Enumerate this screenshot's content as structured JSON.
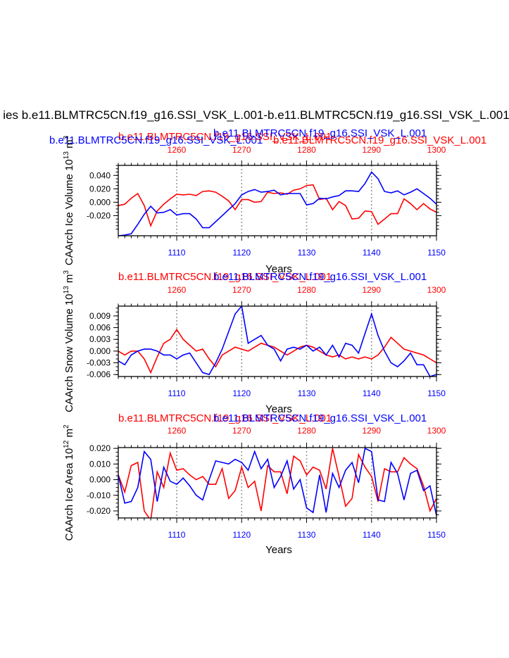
{
  "figure": {
    "main_title": "ies b.e11.BLMTRC5CN.f19_g16.SSI_VSK_L.001-b.e11.BLMTRC5CN.f19_g16.SSI_VSK_L.001"
  },
  "colors": {
    "series_a": "#ff0000",
    "series_b": "#0000ff",
    "reference_lines": "#999999"
  },
  "chart_data": [
    {
      "type": "line",
      "title_left": "b.e11.BLMTRC5CN.f19_g16.SSI_VSK_L.001",
      "title_right": "b.e11.BLMTRC5CN.f19_g16.SSI_VSK_L.001",
      "extra_title_left": "b.e11.BLMTRC5CN.f19_g16.SSI_VSK_L.001",
      "extra_title_right": "b.e11.BLMTRC5CN.f19_g16.SSI_VSK_L.001",
      "ylabel": "CAArch Ice Volume 10",
      "ylabel_exp": "13",
      "ylabel_unit": " m",
      "ylabel_unit_exp": "3",
      "xlabel": "Years",
      "xlim_bottom": [
        1101,
        1150
      ],
      "xlim_top": [
        1251,
        1300
      ],
      "ylim": [
        -0.05,
        0.055
      ],
      "yticks": [
        -0.02,
        0.0,
        0.02,
        0.04
      ],
      "ytick_labels": [
        "-0.020",
        "0.000",
        "0.020",
        "0.040"
      ],
      "xticks_bottom": [
        "1110",
        "1120",
        "1130",
        "1140",
        "1150"
      ],
      "xticks_top": [
        "1260",
        "1270",
        "1280",
        "1290",
        "1300"
      ],
      "series": [
        {
          "color": "#ff0000",
          "x_axis": "top",
          "x": [
            1251,
            1252,
            1253,
            1254,
            1255,
            1256,
            1257,
            1258,
            1259,
            1260,
            1261,
            1262,
            1263,
            1264,
            1265,
            1266,
            1267,
            1268,
            1269,
            1270,
            1271,
            1272,
            1273,
            1274,
            1275,
            1276,
            1277,
            1278,
            1279,
            1280,
            1281,
            1282,
            1283,
            1284,
            1285,
            1286,
            1287,
            1288,
            1289,
            1290,
            1291,
            1292,
            1293,
            1294,
            1295,
            1296,
            1297,
            1298,
            1299,
            1300
          ],
          "values": [
            -0.005,
            -0.003,
            0.006,
            0.013,
            -0.005,
            -0.035,
            -0.013,
            -0.003,
            0.005,
            0.012,
            0.011,
            0.012,
            0.01,
            0.016,
            0.017,
            0.015,
            0.009,
            0.002,
            -0.011,
            0.004,
            0.004,
            0.0,
            0.001,
            0.015,
            0.013,
            0.014,
            0.012,
            0.018,
            0.02,
            0.025,
            0.026,
            0.004,
            0.006,
            -0.011,
            0.001,
            -0.005,
            -0.025,
            -0.024,
            -0.013,
            -0.014,
            -0.033,
            -0.025,
            -0.017,
            -0.017,
            0.005,
            -0.002,
            -0.011,
            -0.002,
            -0.01,
            -0.015
          ]
        },
        {
          "color": "#0000ff",
          "x_axis": "bottom",
          "x": [
            1101,
            1102,
            1103,
            1104,
            1105,
            1106,
            1107,
            1108,
            1109,
            1110,
            1111,
            1112,
            1113,
            1114,
            1115,
            1116,
            1117,
            1118,
            1119,
            1120,
            1121,
            1122,
            1123,
            1124,
            1125,
            1126,
            1127,
            1128,
            1129,
            1130,
            1131,
            1132,
            1133,
            1134,
            1135,
            1136,
            1137,
            1138,
            1139,
            1140,
            1141,
            1142,
            1143,
            1144,
            1145,
            1146,
            1147,
            1148,
            1149,
            1150
          ],
          "values": [
            -0.05,
            -0.049,
            -0.047,
            -0.033,
            -0.018,
            -0.006,
            -0.016,
            -0.015,
            -0.011,
            -0.019,
            -0.017,
            -0.017,
            -0.025,
            -0.038,
            -0.038,
            -0.029,
            -0.02,
            -0.011,
            -0.002,
            0.011,
            0.016,
            0.019,
            0.015,
            0.016,
            0.018,
            0.011,
            0.013,
            0.013,
            0.013,
            -0.004,
            -0.002,
            0.006,
            0.005,
            0.008,
            0.01,
            0.017,
            0.017,
            0.016,
            0.028,
            0.045,
            0.035,
            0.016,
            0.014,
            0.017,
            0.011,
            0.015,
            0.02,
            0.013,
            0.006,
            -0.003
          ]
        }
      ]
    },
    {
      "type": "line",
      "title_left": "b.e11.BLMTRC5CN.f19_g16.SSI_VSK_L.001",
      "title_right": "b.e11.BLMTRC5CN.f19_g16.SSI_VSK_L.001",
      "ylabel": "CAArch Snow Volume 10",
      "ylabel_exp": "13",
      "ylabel_unit": " m",
      "ylabel_unit_exp": "3",
      "xlabel": "Years",
      "xlim_bottom": [
        1101,
        1150
      ],
      "xlim_top": [
        1251,
        1300
      ],
      "ylim": [
        -0.0065,
        0.0115
      ],
      "yticks": [
        -0.006,
        -0.003,
        0.0,
        0.003,
        0.006,
        0.009
      ],
      "ytick_labels": [
        "-0.006",
        "-0.003",
        "0.000",
        "0.003",
        "0.006",
        "0.009"
      ],
      "xticks_bottom": [
        "1110",
        "1120",
        "1130",
        "1140",
        "1150"
      ],
      "xticks_top": [
        "1260",
        "1270",
        "1280",
        "1290",
        "1300"
      ],
      "series": [
        {
          "color": "#ff0000",
          "x_axis": "top",
          "x": [
            1251,
            1252,
            1253,
            1254,
            1255,
            1256,
            1257,
            1258,
            1259,
            1260,
            1261,
            1262,
            1263,
            1264,
            1265,
            1266,
            1267,
            1268,
            1269,
            1270,
            1271,
            1272,
            1273,
            1274,
            1275,
            1276,
            1277,
            1278,
            1279,
            1280,
            1281,
            1282,
            1283,
            1284,
            1285,
            1286,
            1287,
            1288,
            1289,
            1290,
            1291,
            1292,
            1293,
            1294,
            1295,
            1296,
            1297,
            1298,
            1299,
            1300
          ],
          "values": [
            0.0,
            -0.001,
            0.0,
            0.0,
            -0.002,
            -0.0055,
            -0.0015,
            0.002,
            0.003,
            0.0055,
            0.003,
            0.0015,
            0.0,
            0.0005,
            -0.002,
            -0.004,
            -0.001,
            0.0,
            0.001,
            0.0005,
            0.0,
            0.001,
            0.002,
            0.0015,
            0.001,
            0.0,
            -0.001,
            0.0,
            0.001,
            0.0015,
            0.001,
            0.0,
            -0.001,
            -0.0015,
            -0.001,
            -0.002,
            -0.0015,
            -0.002,
            -0.0015,
            -0.002,
            -0.001,
            0.001,
            0.0035,
            0.002,
            0.0005,
            0.0,
            -0.0005,
            -0.001,
            -0.002,
            -0.003
          ]
        },
        {
          "color": "#0000ff",
          "x_axis": "bottom",
          "x": [
            1101,
            1102,
            1103,
            1104,
            1105,
            1106,
            1107,
            1108,
            1109,
            1110,
            1111,
            1112,
            1113,
            1114,
            1115,
            1116,
            1117,
            1118,
            1119,
            1120,
            1121,
            1122,
            1123,
            1124,
            1125,
            1126,
            1127,
            1128,
            1129,
            1130,
            1131,
            1132,
            1133,
            1134,
            1135,
            1136,
            1137,
            1138,
            1139,
            1140,
            1141,
            1142,
            1143,
            1144,
            1145,
            1146,
            1147,
            1148,
            1149,
            1150
          ],
          "values": [
            -0.0025,
            -0.0035,
            -0.001,
            0.0,
            0.0005,
            0.0005,
            0.0,
            -0.001,
            -0.001,
            -0.002,
            -0.001,
            -0.0005,
            -0.003,
            -0.0055,
            -0.006,
            -0.003,
            0.0005,
            0.005,
            0.0095,
            0.0115,
            0.002,
            0.003,
            0.004,
            0.0015,
            0.0005,
            -0.0025,
            0.0005,
            0.001,
            0.0005,
            0.0015,
            0.0,
            0.001,
            -0.001,
            0.0015,
            -0.0015,
            0.002,
            0.0015,
            -0.0005,
            0.0045,
            0.0095,
            0.004,
            0.0,
            -0.003,
            -0.004,
            -0.0025,
            -0.0005,
            -0.0035,
            -0.0035,
            -0.0065,
            -0.006
          ]
        }
      ]
    },
    {
      "type": "line",
      "title_left": "b.e11.BLMTRC5CN.f19_g16.SSI_VSK_L.001",
      "title_right": "b.e11.BLMTRC5CN.f19_g16.SSI_VSK_L.001",
      "ylabel": "CAArch Ice Area 10",
      "ylabel_exp": "12",
      "ylabel_unit": " m",
      "ylabel_unit_exp": "2",
      "xlabel": "Years",
      "xlim_bottom": [
        1101,
        1150
      ],
      "xlim_top": [
        1251,
        1300
      ],
      "ylim": [
        -0.0245,
        0.0205
      ],
      "yticks": [
        -0.02,
        -0.01,
        0.0,
        0.01,
        0.02
      ],
      "ytick_labels": [
        "-0.020",
        "-0.010",
        "0.000",
        "0.010",
        "0.020"
      ],
      "xticks_bottom": [
        "1110",
        "1120",
        "1130",
        "1140",
        "1150"
      ],
      "xticks_top": [
        "1260",
        "1270",
        "1280",
        "1290",
        "1300"
      ],
      "series": [
        {
          "color": "#ff0000",
          "x_axis": "top",
          "x": [
            1251,
            1252,
            1253,
            1254,
            1255,
            1256,
            1257,
            1258,
            1259,
            1260,
            1261,
            1262,
            1263,
            1264,
            1265,
            1266,
            1267,
            1268,
            1269,
            1270,
            1271,
            1272,
            1273,
            1274,
            1275,
            1276,
            1277,
            1278,
            1279,
            1280,
            1281,
            1282,
            1283,
            1284,
            1285,
            1286,
            1287,
            1288,
            1289,
            1290,
            1291,
            1292,
            1293,
            1294,
            1295,
            1296,
            1297,
            1298,
            1299,
            1300
          ],
          "values": [
            0.003,
            -0.008,
            0.009,
            0.011,
            -0.02,
            -0.026,
            0.005,
            -0.005,
            0.017,
            0.006,
            0.007,
            0.003,
            0.0,
            0.002,
            -0.003,
            -0.003,
            0.007,
            -0.012,
            -0.007,
            0.008,
            -0.005,
            -0.001,
            -0.02,
            0.009,
            0.005,
            0.005,
            -0.009,
            0.015,
            0.012,
            0.003,
            0.008,
            0.006,
            -0.006,
            0.02,
            0.002,
            -0.017,
            -0.012,
            0.016,
            0.008,
            0.002,
            -0.014,
            0.007,
            0.005,
            0.005,
            0.014,
            0.01,
            0.007,
            -0.004,
            -0.02,
            -0.012
          ]
        },
        {
          "color": "#0000ff",
          "x_axis": "bottom",
          "x": [
            1101,
            1102,
            1103,
            1104,
            1105,
            1106,
            1107,
            1108,
            1109,
            1110,
            1111,
            1112,
            1113,
            1114,
            1115,
            1116,
            1117,
            1118,
            1119,
            1120,
            1121,
            1122,
            1123,
            1124,
            1125,
            1126,
            1127,
            1128,
            1129,
            1130,
            1131,
            1132,
            1133,
            1134,
            1135,
            1136,
            1137,
            1138,
            1139,
            1140,
            1141,
            1142,
            1143,
            1144,
            1145,
            1146,
            1147,
            1148,
            1149,
            1150
          ],
          "values": [
            0.003,
            -0.015,
            -0.014,
            -0.005,
            0.018,
            0.013,
            -0.014,
            0.008,
            -0.001,
            -0.003,
            0.001,
            -0.004,
            -0.01,
            -0.013,
            0.0,
            0.012,
            0.011,
            0.01,
            0.013,
            0.011,
            0.006,
            0.018,
            0.007,
            0.013,
            -0.005,
            0.002,
            0.012,
            -0.006,
            0.0,
            -0.018,
            -0.021,
            0.003,
            -0.021,
            0.004,
            -0.005,
            0.006,
            0.011,
            -0.002,
            0.02,
            0.018,
            -0.013,
            -0.014,
            0.011,
            0.004,
            -0.013,
            0.004,
            0.006,
            -0.007,
            -0.004,
            -0.023
          ]
        }
      ]
    }
  ]
}
